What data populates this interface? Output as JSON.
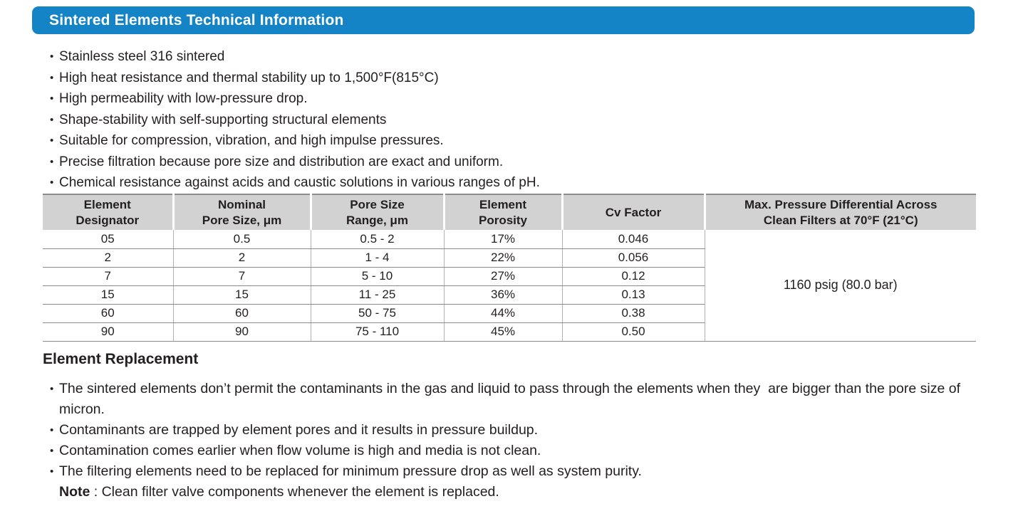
{
  "title_bar": {
    "title": "Sintered Elements Technical Information"
  },
  "features": [
    "Stainless steel 316 sintered",
    "High heat resistance and thermal stability up to 1,500°F(815°C)",
    "High permeability with low-pressure drop.",
    "Shape-stability with self-supporting structural elements",
    "Suitable for compression, vibration, and high impulse pressures.",
    "Precise filtration because pore size and distribution are exact and uniform.",
    "Chemical resistance against acids and caustic solutions in various ranges of pH."
  ],
  "spec_table": {
    "headers": [
      "Element\nDesignator",
      "Nominal\nPore Size, μm",
      "Pore Size\nRange, μm",
      "Element\nPorosity",
      "Cv Factor",
      "Max. Pressure Differential Across\nClean Filters at 70°F (21°C)"
    ],
    "rows": [
      [
        "05",
        "0.5",
        "0.5 - 2",
        "17%",
        "0.046"
      ],
      [
        "2",
        "2",
        "1 - 4",
        "22%",
        "0.056"
      ],
      [
        "7",
        "7",
        "5 - 10",
        "27%",
        "0.12"
      ],
      [
        "15",
        "15",
        "11 - 25",
        "36%",
        "0.13"
      ],
      [
        "60",
        "60",
        "50 - 75",
        "44%",
        "0.38"
      ],
      [
        "90",
        "90",
        "75 - 110",
        "45%",
        "0.50"
      ]
    ],
    "max_pressure_value": "1160 psig (80.0 bar)"
  },
  "element_replacement": {
    "heading": "Element Replacement",
    "bullets": [
      "The sintered elements don’t permit the contaminants in the gas and liquid to pass through the elements when they  are bigger than the pore size of micron.",
      "Contaminants are trapped by element pores and it results in pressure buildup.",
      "Contamination comes earlier when flow volume is high and media is not clean.",
      "The filtering elements need to be replaced for minimum pressure drop as well as system purity."
    ],
    "note_label": "Note",
    "note_text": " : Clean filter valve components whenever the element is replaced."
  },
  "colors": {
    "accent_blue": "#1484c6",
    "table_header_gray": "#d2d2d2",
    "text_color": "#231f20"
  }
}
